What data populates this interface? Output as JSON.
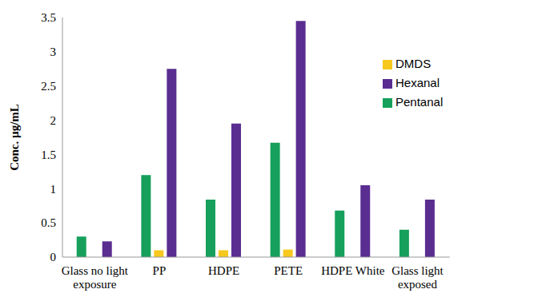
{
  "chart_data": {
    "type": "bar",
    "y_label": "Conc. µg/mL",
    "categories": [
      "Glass no light exposure",
      "PP",
      "HDPE",
      "PETE",
      "HDPE White",
      "Glass light exposed"
    ],
    "series": [
      {
        "name": "Pentanal",
        "color": "#16a05c",
        "values": [
          0.3,
          1.2,
          0.84,
          1.67,
          0.68,
          0.4
        ]
      },
      {
        "name": "DMDS",
        "color": "#f7c81e",
        "values": [
          null,
          0.1,
          0.1,
          0.11,
          null,
          null
        ]
      },
      {
        "name": "Hexanal",
        "color": "#5a2d91",
        "values": [
          0.23,
          2.75,
          1.95,
          3.45,
          1.05,
          0.84
        ]
      }
    ],
    "ylim": [
      0,
      3.5
    ],
    "yticks": [
      0,
      0.5,
      1,
      1.5,
      2,
      2.5,
      3,
      3.5
    ],
    "grid": false,
    "legend": "upper right"
  }
}
